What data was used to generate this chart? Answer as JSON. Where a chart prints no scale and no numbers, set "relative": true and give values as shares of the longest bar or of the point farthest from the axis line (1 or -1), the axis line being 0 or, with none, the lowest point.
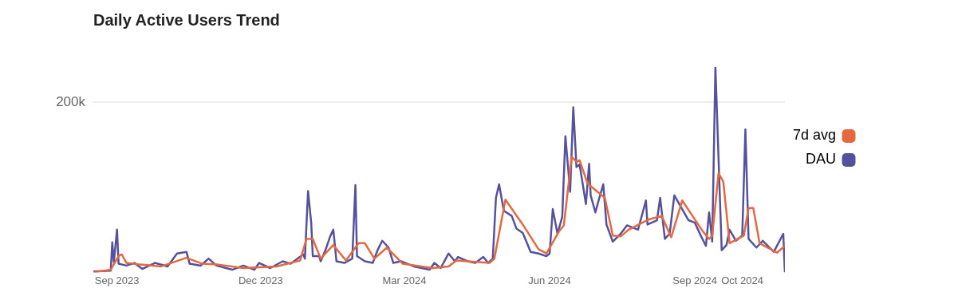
{
  "chart_data": {
    "type": "line",
    "title": "Daily Active Users Trend",
    "relative": true,
    "xlim": [
      "2023-08-17",
      "2024-10-28"
    ],
    "xticks": [
      {
        "value": "2023-09",
        "label": "Sep 2023"
      },
      {
        "value": "2023-12",
        "label": "Dec 2023"
      },
      {
        "value": "2024-03",
        "label": "Mar 2024"
      },
      {
        "value": "2024-06",
        "label": "Jun 2024"
      },
      {
        "value": "2024-09",
        "label": "Sep 2024"
      },
      {
        "value": "2024-10",
        "label": "Oct 2024"
      }
    ],
    "ref_lines": [
      {
        "axis": "y",
        "value": 0.829,
        "label": "200k",
        "color": "#e6e6e6"
      }
    ],
    "legend": "right",
    "marker": "none",
    "line_style": "solid",
    "series": [
      {
        "name": "7d avg",
        "color": "#e4693f",
        "x": [
          "2023-08-17",
          "2023-08-28",
          "2023-09-02",
          "2023-09-04",
          "2023-09-07",
          "2023-09-16",
          "2023-09-29",
          "2023-10-15",
          "2023-10-25",
          "2023-11-04",
          "2023-11-20",
          "2023-11-30",
          "2023-12-11",
          "2023-12-26",
          "2023-12-30",
          "2024-01-03",
          "2024-01-08",
          "2024-01-16",
          "2024-01-24",
          "2024-02-01",
          "2024-02-05",
          "2024-02-11",
          "2024-02-19",
          "2024-02-29",
          "2024-03-19",
          "2024-03-29",
          "2024-04-03",
          "2024-04-24",
          "2024-04-27",
          "2024-05-04",
          "2024-05-15",
          "2024-05-25",
          "2024-05-30",
          "2024-06-07",
          "2024-06-10",
          "2024-06-15",
          "2024-06-18",
          "2024-06-20",
          "2024-06-25",
          "2024-07-06",
          "2024-07-11",
          "2024-07-16",
          "2024-07-21",
          "2024-08-03",
          "2024-08-11",
          "2024-08-17",
          "2024-08-24",
          "2024-09-06",
          "2024-09-10",
          "2024-09-12",
          "2024-09-16",
          "2024-09-19",
          "2024-09-23",
          "2024-09-30",
          "2024-10-02",
          "2024-10-05",
          "2024-10-08",
          "2024-10-12",
          "2024-10-23",
          "2024-10-28"
        ],
        "values": [
          0,
          0.013,
          0.079,
          0.088,
          0.046,
          0.038,
          0.029,
          0.071,
          0.042,
          0.038,
          0.021,
          0.025,
          0.029,
          0.058,
          0.163,
          0.163,
          0.067,
          0.133,
          0.058,
          0.142,
          0.142,
          0.067,
          0.121,
          0.042,
          0.021,
          0.029,
          0.058,
          0.046,
          0.067,
          0.354,
          0.233,
          0.113,
          0.092,
          0.2,
          0.229,
          0.563,
          0.538,
          0.546,
          0.433,
          0.363,
          0.179,
          0.175,
          0.208,
          0.258,
          0.275,
          0.171,
          0.35,
          0.2,
          0.163,
          0.179,
          0.483,
          0.442,
          0.142,
          0.171,
          0.179,
          0.313,
          0.313,
          0.142,
          0.096,
          0.129
        ]
      },
      {
        "name": "DAU",
        "color": "#56519e",
        "x": [
          "2023-08-17",
          "2023-08-28",
          "2023-08-29",
          "2023-08-30",
          "2023-09-01",
          "2023-09-02",
          "2023-09-07",
          "2023-09-12",
          "2023-09-17",
          "2023-09-25",
          "2023-10-03",
          "2023-10-09",
          "2023-10-15",
          "2023-10-17",
          "2023-10-24",
          "2023-10-29",
          "2023-11-03",
          "2023-11-13",
          "2023-11-20",
          "2023-11-27",
          "2023-11-30",
          "2023-12-07",
          "2023-12-15",
          "2023-12-20",
          "2023-12-28",
          "2023-12-29",
          "2023-12-31",
          "2024-01-02",
          "2024-01-03",
          "2024-01-07",
          "2024-01-08",
          "2024-01-11",
          "2024-01-14",
          "2024-01-16",
          "2024-01-18",
          "2024-01-23",
          "2024-01-28",
          "2024-01-30",
          "2024-01-31",
          "2024-02-05",
          "2024-02-10",
          "2024-02-13",
          "2024-02-16",
          "2024-02-20",
          "2024-02-23",
          "2024-02-28",
          "2024-03-07",
          "2024-03-17",
          "2024-03-20",
          "2024-03-24",
          "2024-03-29",
          "2024-04-02",
          "2024-04-04",
          "2024-04-10",
          "2024-04-15",
          "2024-04-20",
          "2024-04-23",
          "2024-04-26",
          "2024-04-28",
          "2024-04-30",
          "2024-05-03",
          "2024-05-08",
          "2024-05-11",
          "2024-05-15",
          "2024-05-20",
          "2024-05-25",
          "2024-05-30",
          "2024-06-01",
          "2024-06-03",
          "2024-06-06",
          "2024-06-09",
          "2024-06-11",
          "2024-06-14",
          "2024-06-16",
          "2024-06-18",
          "2024-06-20",
          "2024-06-24",
          "2024-06-26",
          "2024-06-27",
          "2024-06-30",
          "2024-07-02",
          "2024-07-05",
          "2024-07-07",
          "2024-07-11",
          "2024-07-16",
          "2024-07-20",
          "2024-07-27",
          "2024-08-01",
          "2024-08-02",
          "2024-08-08",
          "2024-08-10",
          "2024-08-13",
          "2024-08-16",
          "2024-08-19",
          "2024-08-23",
          "2024-08-28",
          "2024-09-01",
          "2024-09-05",
          "2024-09-08",
          "2024-09-10",
          "2024-09-12",
          "2024-09-14",
          "2024-09-18",
          "2024-09-21",
          "2024-09-23",
          "2024-09-27",
          "2024-10-01",
          "2024-10-03",
          "2024-10-05",
          "2024-10-10",
          "2024-10-14",
          "2024-10-21",
          "2024-10-27",
          "2024-10-28"
        ],
        "values": [
          0.004,
          0.008,
          0.146,
          0.05,
          0.208,
          0.042,
          0.033,
          0.046,
          0.017,
          0.046,
          0.029,
          0.092,
          0.1,
          0.042,
          0.033,
          0.067,
          0.033,
          0.013,
          0.033,
          0.013,
          0.046,
          0.021,
          0.054,
          0.042,
          0.088,
          0.067,
          0.396,
          0.242,
          0.079,
          0.079,
          0.054,
          0.108,
          0.175,
          0.208,
          0.054,
          0.046,
          0.067,
          0.425,
          0.079,
          0.054,
          0.046,
          0.108,
          0.154,
          0.121,
          0.046,
          0.054,
          0.029,
          0.013,
          0.046,
          0.021,
          0.092,
          0.054,
          0.075,
          0.054,
          0.046,
          0.075,
          0.046,
          0.067,
          0.363,
          0.429,
          0.3,
          0.275,
          0.213,
          0.192,
          0.1,
          0.092,
          0.079,
          0.092,
          0.308,
          0.188,
          0.271,
          0.663,
          0.392,
          0.804,
          0.513,
          0.525,
          0.333,
          0.529,
          0.375,
          0.292,
          0.35,
          0.429,
          0.233,
          0.15,
          0.188,
          0.229,
          0.208,
          0.35,
          0.233,
          0.254,
          0.363,
          0.163,
          0.188,
          0.375,
          0.321,
          0.254,
          0.242,
          0.175,
          0.129,
          0.292,
          0.15,
          1,
          0.108,
          0.133,
          0.208,
          0.154,
          0.179,
          0.696,
          0.163,
          0.121,
          0.154,
          0.1,
          0.188,
          0
        ]
      }
    ]
  }
}
